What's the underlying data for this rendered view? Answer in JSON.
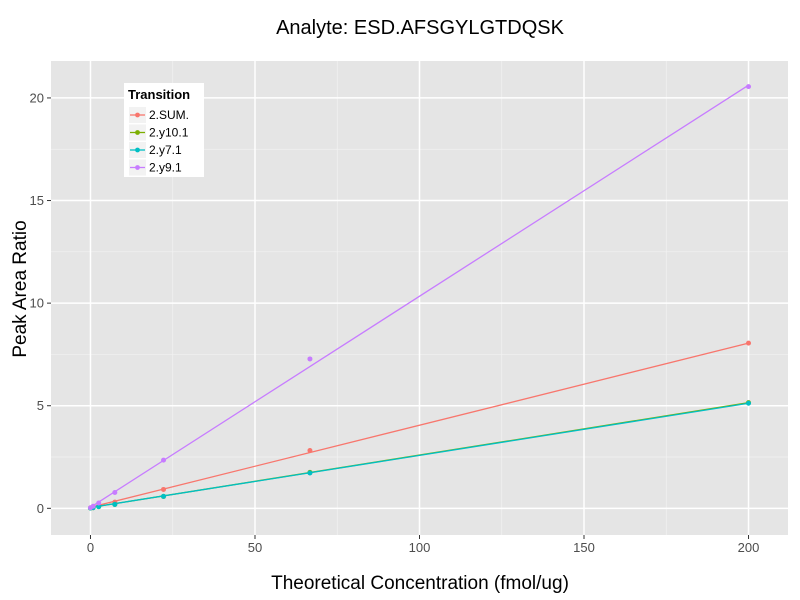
{
  "chart_data": {
    "type": "line",
    "title": "Analyte: ESD.AFSGYLGTDQSK",
    "xlabel": "Theoretical Concentration (fmol/ug)",
    "ylabel": "Peak Area Ratio",
    "xlim": [
      -12,
      212
    ],
    "ylim": [
      -1.3,
      21.8
    ],
    "x_ticks": [
      0,
      50,
      100,
      150,
      200
    ],
    "y_ticks": [
      0,
      5,
      10,
      15,
      20
    ],
    "grid": true,
    "legend": {
      "title": "Transition",
      "position": "top-left"
    },
    "series": [
      {
        "name": "2.SUM.",
        "color": "#F8766D",
        "x": [
          0,
          0.8,
          2.5,
          7.4,
          22.2,
          66.7,
          200
        ],
        "y": [
          0.02,
          0.05,
          0.12,
          0.3,
          0.92,
          2.82,
          8.05
        ],
        "fit": [
          [
            0,
            0.05
          ],
          [
            200,
            8.05
          ]
        ]
      },
      {
        "name": "2.y10.1",
        "color": "#7CAE00",
        "x": [
          0,
          0.8,
          2.5,
          7.4,
          22.2,
          66.7,
          200
        ],
        "y": [
          0.01,
          0.03,
          0.08,
          0.19,
          0.58,
          1.75,
          5.15
        ],
        "fit": [
          [
            0,
            0.04
          ],
          [
            200,
            5.15
          ]
        ]
      },
      {
        "name": "2.y7.1",
        "color": "#00BFC4",
        "x": [
          0,
          0.8,
          2.5,
          7.4,
          22.2,
          66.7,
          200
        ],
        "y": [
          0.01,
          0.03,
          0.08,
          0.19,
          0.58,
          1.72,
          5.12
        ],
        "fit": [
          [
            0,
            0.04
          ],
          [
            200,
            5.12
          ]
        ]
      },
      {
        "name": "2.y9.1",
        "color": "#C77CFF",
        "x": [
          0,
          0.8,
          2.5,
          7.4,
          22.2,
          66.7,
          200
        ],
        "y": [
          0.03,
          0.1,
          0.26,
          0.77,
          2.35,
          7.28,
          20.55
        ],
        "fit": [
          [
            0,
            0.05
          ],
          [
            200,
            20.62
          ]
        ]
      }
    ]
  }
}
